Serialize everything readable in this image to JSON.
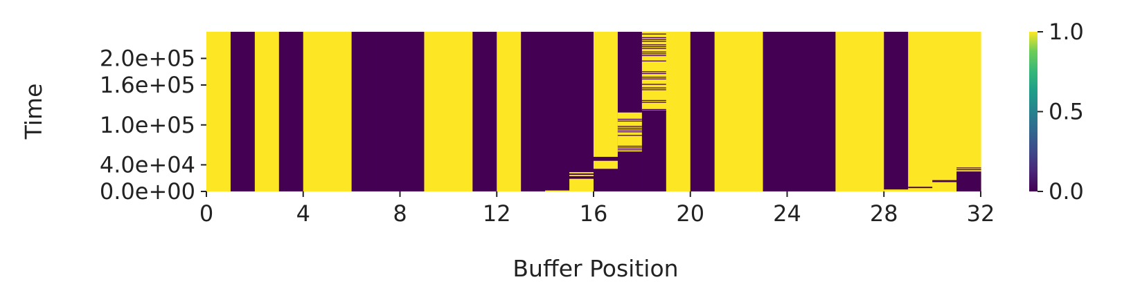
{
  "chart_data": {
    "type": "heatmap",
    "title": "",
    "xlabel": "Buffer Position",
    "ylabel": "Time",
    "xlim": [
      0,
      32
    ],
    "ylim": [
      0,
      240000
    ],
    "x_ticks": [
      "0",
      "4",
      "8",
      "12",
      "16",
      "20",
      "24",
      "28",
      "32"
    ],
    "y_ticks": [
      "0.0e+00",
      "4.0e+04",
      "1.0e+05",
      "1.6e+05",
      "2.0e+05"
    ],
    "y_tick_values": [
      0,
      40000,
      100000,
      160000,
      200000
    ],
    "colormap": "viridis",
    "colors": {
      "low": "#440154",
      "high": "#fde725"
    },
    "colorbar": {
      "min": 0.0,
      "max": 1.0,
      "ticks": [
        "0.0",
        "0.5",
        "1.0"
      ],
      "tick_values": [
        0,
        0.5,
        1.0
      ]
    },
    "columns": [
      {
        "position": 0,
        "segments": [
          [
            0,
            240000,
            1
          ]
        ]
      },
      {
        "position": 1,
        "segments": [
          [
            0,
            240000,
            0
          ]
        ]
      },
      {
        "position": 2,
        "segments": [
          [
            0,
            240000,
            1
          ]
        ]
      },
      {
        "position": 3,
        "segments": [
          [
            0,
            240000,
            0
          ]
        ]
      },
      {
        "position": 4,
        "segments": [
          [
            0,
            240000,
            1
          ]
        ]
      },
      {
        "position": 5,
        "segments": [
          [
            0,
            240000,
            1
          ]
        ]
      },
      {
        "position": 6,
        "segments": [
          [
            0,
            240000,
            0
          ]
        ]
      },
      {
        "position": 7,
        "segments": [
          [
            0,
            240000,
            0
          ]
        ]
      },
      {
        "position": 8,
        "segments": [
          [
            0,
            240000,
            0
          ]
        ]
      },
      {
        "position": 9,
        "segments": [
          [
            0,
            240000,
            1
          ]
        ]
      },
      {
        "position": 10,
        "segments": [
          [
            0,
            240000,
            1
          ]
        ]
      },
      {
        "position": 11,
        "segments": [
          [
            0,
            240000,
            0
          ]
        ]
      },
      {
        "position": 12,
        "segments": [
          [
            0,
            240000,
            1
          ]
        ]
      },
      {
        "position": 13,
        "segments": [
          [
            0,
            240000,
            0
          ]
        ]
      },
      {
        "position": 14,
        "segments": [
          [
            0,
            240000,
            0
          ],
          [
            0,
            1500,
            1
          ]
        ]
      },
      {
        "position": 15,
        "segments": [
          [
            0,
            240000,
            0
          ],
          [
            0,
            19000,
            1
          ],
          [
            23000,
            25000,
            1
          ],
          [
            27000,
            29000,
            1
          ]
        ]
      },
      {
        "position": 16,
        "segments": [
          [
            0,
            240000,
            1
          ],
          [
            0,
            34000,
            0
          ],
          [
            46000,
            52000,
            0
          ]
        ]
      },
      {
        "position": 17,
        "segments": [
          [
            0,
            240000,
            0
          ],
          [
            60000,
            120000,
            1
          ]
        ]
      },
      {
        "position": 18,
        "segments": [
          [
            0,
            240000,
            0
          ],
          [
            122000,
            240000,
            1
          ]
        ]
      },
      {
        "position": 19,
        "segments": [
          [
            0,
            240000,
            1
          ]
        ]
      },
      {
        "position": 20,
        "segments": [
          [
            0,
            240000,
            0
          ]
        ]
      },
      {
        "position": 21,
        "segments": [
          [
            0,
            240000,
            1
          ]
        ]
      },
      {
        "position": 22,
        "segments": [
          [
            0,
            240000,
            1
          ]
        ]
      },
      {
        "position": 23,
        "segments": [
          [
            0,
            240000,
            0
          ]
        ]
      },
      {
        "position": 24,
        "segments": [
          [
            0,
            240000,
            0
          ]
        ]
      },
      {
        "position": 25,
        "segments": [
          [
            0,
            240000,
            0
          ]
        ]
      },
      {
        "position": 26,
        "segments": [
          [
            0,
            240000,
            1
          ]
        ]
      },
      {
        "position": 27,
        "segments": [
          [
            0,
            240000,
            1
          ]
        ]
      },
      {
        "position": 28,
        "segments": [
          [
            0,
            240000,
            0
          ],
          [
            0,
            3000,
            1
          ]
        ]
      },
      {
        "position": 29,
        "segments": [
          [
            0,
            240000,
            1
          ],
          [
            5000,
            7000,
            0
          ]
        ]
      },
      {
        "position": 30,
        "segments": [
          [
            0,
            240000,
            1
          ],
          [
            14000,
            17000,
            0
          ]
        ]
      },
      {
        "position": 31,
        "segments": [
          [
            0,
            240000,
            1
          ],
          [
            0,
            30000,
            0
          ],
          [
            32000,
            33500,
            0
          ],
          [
            35000,
            36000,
            0
          ]
        ]
      }
    ],
    "flicker_bands": [
      {
        "position": 17,
        "from": 50000,
        "to": 120000
      },
      {
        "position": 18,
        "from": 120000,
        "to": 240000
      }
    ],
    "grid": false,
    "legend": "none"
  }
}
